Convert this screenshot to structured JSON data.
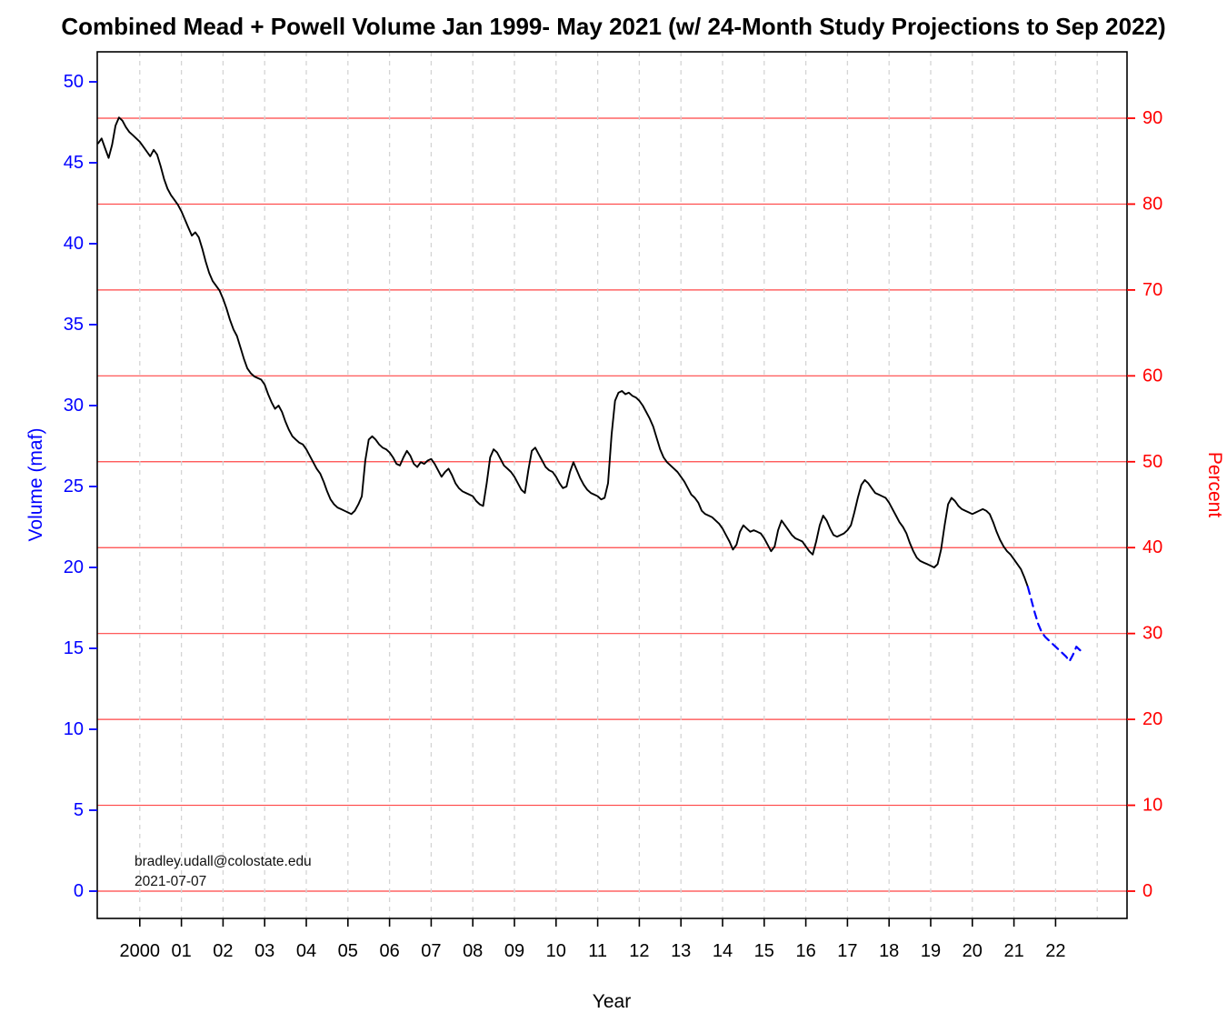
{
  "chart_data": {
    "type": "line",
    "title": "Combined Mead + Powell Volume Jan 1999- May 2021 (w/ 24-Month Study Projections to Sep 2022)",
    "xlabel": "Year",
    "ylabel_left": "Volume (maf)",
    "ylabel_right": "Percent",
    "annotation": {
      "line1": "bradley.udall@colostate.edu",
      "line2": "2021-07-07"
    },
    "colors": {
      "left_axis": "#0000ff",
      "right_axis": "#ff0000",
      "historical_line": "#000000",
      "projection_line": "#0000ff",
      "percent_gridline": "#ff4444",
      "year_gridline": "#d4d4d4",
      "frame": "#000000"
    },
    "x_axis": {
      "tick_years": [
        2000,
        2001,
        2002,
        2003,
        2004,
        2005,
        2006,
        2007,
        2008,
        2009,
        2010,
        2011,
        2012,
        2013,
        2014,
        2015,
        2016,
        2017,
        2018,
        2019,
        2020,
        2021,
        2022
      ],
      "tick_labels": [
        "2000",
        "01",
        "02",
        "03",
        "04",
        "05",
        "06",
        "07",
        "08",
        "09",
        "10",
        "11",
        "12",
        "13",
        "14",
        "15",
        "16",
        "17",
        "18",
        "19",
        "20",
        "21",
        "22"
      ],
      "gridline_years": [
        2000,
        2001,
        2002,
        2003,
        2004,
        2005,
        2006,
        2007,
        2008,
        2009,
        2010,
        2011,
        2012,
        2013,
        2014,
        2015,
        2016,
        2017,
        2018,
        2019,
        2020,
        2021,
        2022,
        2023
      ],
      "range": [
        1999.0,
        2023.7
      ]
    },
    "y_left": {
      "ticks": [
        0,
        5,
        10,
        15,
        20,
        25,
        30,
        35,
        40,
        45,
        50
      ],
      "range": [
        0,
        51.9
      ],
      "units": "maf"
    },
    "y_right": {
      "ticks": [
        0,
        10,
        20,
        30,
        40,
        50,
        60,
        70,
        80,
        90
      ],
      "range": [
        0,
        90
      ],
      "units": "%"
    },
    "series": [
      {
        "name": "Combined Mead + Powell volume (historical)",
        "style": "solid",
        "color": "#000000",
        "cadence": "monthly",
        "start_year": 1999,
        "start_month": 1,
        "end_label": "May 2021",
        "values_maf": [
          46.2,
          46.5,
          45.9,
          45.3,
          46.1,
          47.3,
          47.8,
          47.6,
          47.2,
          46.9,
          46.7,
          46.5,
          46.3,
          46.0,
          45.7,
          45.4,
          45.8,
          45.5,
          44.8,
          44.0,
          43.4,
          43.0,
          42.7,
          42.4,
          42.0,
          41.5,
          41.0,
          40.5,
          40.7,
          40.4,
          39.7,
          38.9,
          38.2,
          37.7,
          37.4,
          37.1,
          36.6,
          36.0,
          35.3,
          34.7,
          34.3,
          33.6,
          32.9,
          32.3,
          32.0,
          31.8,
          31.7,
          31.6,
          31.3,
          30.7,
          30.2,
          29.8,
          30.0,
          29.6,
          29.0,
          28.5,
          28.1,
          27.9,
          27.7,
          27.6,
          27.3,
          26.9,
          26.5,
          26.1,
          25.8,
          25.3,
          24.7,
          24.2,
          23.9,
          23.7,
          23.6,
          23.5,
          23.4,
          23.3,
          23.5,
          23.9,
          24.4,
          26.6,
          27.9,
          28.1,
          27.9,
          27.6,
          27.4,
          27.3,
          27.1,
          26.8,
          26.4,
          26.3,
          26.8,
          27.2,
          26.9,
          26.4,
          26.2,
          26.5,
          26.4,
          26.6,
          26.7,
          26.4,
          26.0,
          25.6,
          25.9,
          26.1,
          25.7,
          25.2,
          24.9,
          24.7,
          24.6,
          24.5,
          24.4,
          24.1,
          23.9,
          23.8,
          25.2,
          26.8,
          27.3,
          27.1,
          26.7,
          26.3,
          26.1,
          25.9,
          25.6,
          25.2,
          24.8,
          24.6,
          26.0,
          27.2,
          27.4,
          27.0,
          26.6,
          26.2,
          26.0,
          25.9,
          25.6,
          25.2,
          24.9,
          25.0,
          25.9,
          26.5,
          26.0,
          25.5,
          25.1,
          24.8,
          24.6,
          24.5,
          24.4,
          24.2,
          24.3,
          25.2,
          28.2,
          30.3,
          30.8,
          30.9,
          30.7,
          30.8,
          30.6,
          30.5,
          30.3,
          30.0,
          29.6,
          29.2,
          28.7,
          28.0,
          27.3,
          26.8,
          26.5,
          26.3,
          26.1,
          25.9,
          25.6,
          25.3,
          24.9,
          24.5,
          24.3,
          24.0,
          23.5,
          23.3,
          23.2,
          23.1,
          22.9,
          22.7,
          22.4,
          22.0,
          21.6,
          21.1,
          21.4,
          22.2,
          22.6,
          22.4,
          22.2,
          22.3,
          22.2,
          22.1,
          21.8,
          21.4,
          21.0,
          21.3,
          22.3,
          22.9,
          22.6,
          22.3,
          22.0,
          21.8,
          21.7,
          21.6,
          21.3,
          21.0,
          20.8,
          21.6,
          22.6,
          23.2,
          22.9,
          22.4,
          22.0,
          21.9,
          22.0,
          22.1,
          22.3,
          22.6,
          23.4,
          24.3,
          25.1,
          25.4,
          25.2,
          24.9,
          24.6,
          24.5,
          24.4,
          24.3,
          24.0,
          23.6,
          23.2,
          22.8,
          22.5,
          22.1,
          21.5,
          21.0,
          20.6,
          20.4,
          20.3,
          20.2,
          20.1,
          20.0,
          20.2,
          21.1,
          22.6,
          23.9,
          24.3,
          24.1,
          23.8,
          23.6,
          23.5,
          23.4,
          23.3,
          23.4,
          23.5,
          23.6,
          23.5,
          23.3,
          22.8,
          22.2,
          21.7,
          21.3,
          21.0,
          20.8,
          20.5,
          20.2,
          19.9,
          19.4,
          18.8
        ]
      },
      {
        "name": "24-Month Study projection",
        "style": "dashed",
        "color": "#0000ff",
        "cadence": "monthly",
        "start_year": 2021,
        "start_month": 5,
        "end_label": "Sep 2022",
        "values_maf": [
          18.8,
          18.0,
          17.2,
          16.5,
          16.0,
          15.7,
          15.5,
          15.3,
          15.1,
          14.9,
          14.7,
          14.5,
          14.2,
          14.6,
          15.1,
          14.9,
          14.7
        ]
      }
    ]
  }
}
